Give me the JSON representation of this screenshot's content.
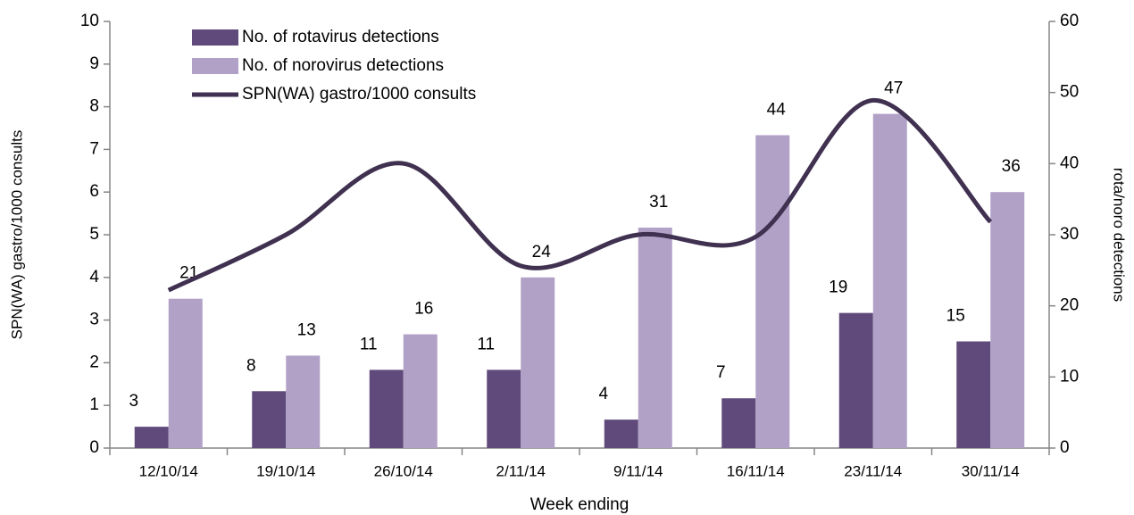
{
  "chart_data": {
    "type": "bar",
    "categories": [
      "12/10/14",
      "19/10/14",
      "26/10/14",
      "2/11/14",
      "9/11/14",
      "16/11/14",
      "23/11/14",
      "30/11/14"
    ],
    "series": [
      {
        "name": "No. of rotavirus detections",
        "type": "bar",
        "axis": "y2",
        "color": "#604a7b",
        "values": [
          3,
          8,
          11,
          11,
          4,
          7,
          19,
          15
        ]
      },
      {
        "name": "No. of norovirus detections",
        "type": "bar",
        "axis": "y2",
        "color": "#b2a1c7",
        "values": [
          21,
          13,
          16,
          24,
          31,
          44,
          47,
          36
        ]
      },
      {
        "name": "SPN(WA) gastro/1000 consults",
        "type": "line",
        "axis": "y",
        "color": "#403151",
        "values": [
          3.7,
          5.0,
          6.67,
          4.27,
          5.0,
          4.95,
          8.15,
          5.3
        ]
      }
    ],
    "x_label": "Week ending",
    "y_label": "SPN(WA) gastro/1000 consults",
    "y2_label": "rota/noro detections",
    "ylim": [
      0,
      10
    ],
    "yticks": [
      0,
      1,
      2,
      3,
      4,
      5,
      6,
      7,
      8,
      9,
      10
    ],
    "y2lim": [
      0,
      60
    ],
    "y2ticks": [
      0,
      10,
      20,
      30,
      40,
      50,
      60
    ],
    "legend": "upper left",
    "grid": false
  }
}
